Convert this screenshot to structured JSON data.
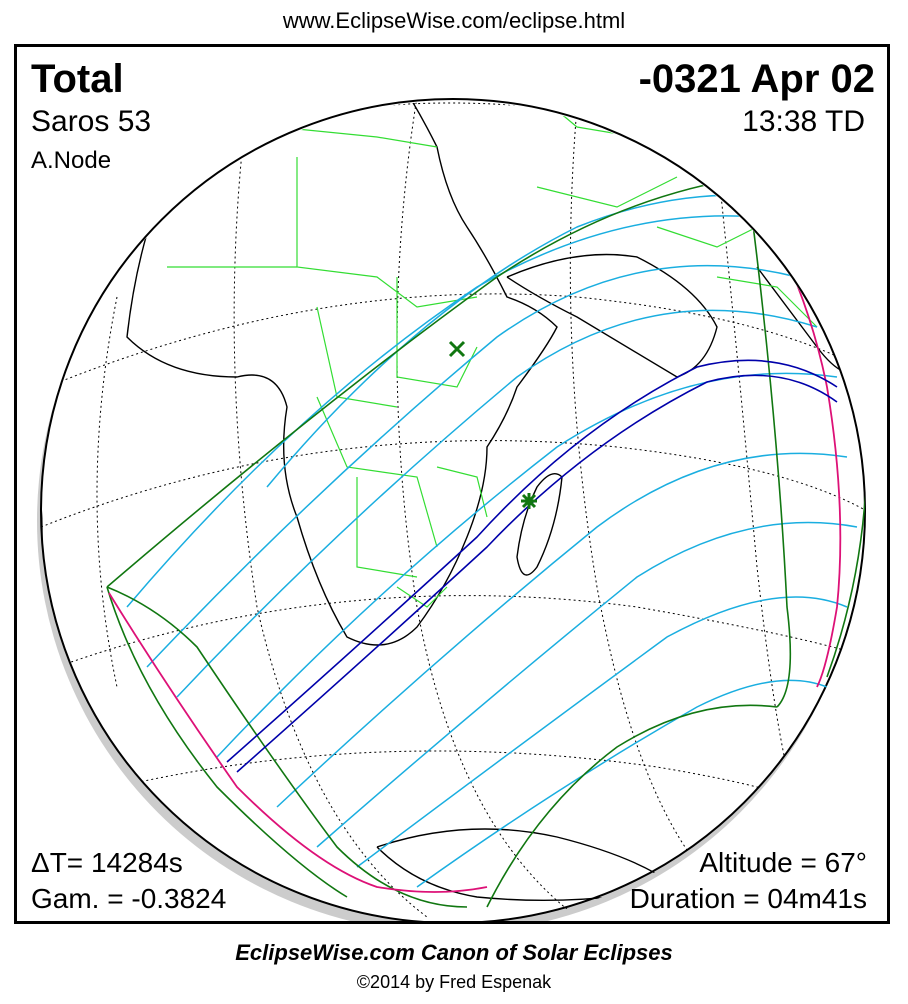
{
  "header": {
    "url": "www.EclipseWise.com/eclipse.html"
  },
  "eclipse": {
    "type": "Total",
    "date": "-0321 Apr 02",
    "saros": "Saros  53",
    "time": "13:38 TD",
    "node": "A.Node",
    "delta_t": "ΔT=  14284s",
    "gamma": "Gam. = -0.3824",
    "altitude": "Altitude = 67°",
    "duration": "Duration = 04m41s"
  },
  "colors": {
    "continents": "#000000",
    "borders": "#33dd33",
    "penumbral_limits": "#117711",
    "umbral_path": "#0000aa",
    "time_lines": "#1aaee0",
    "rise_set": "#dd1177",
    "graticule": "#000000"
  },
  "markers": {
    "greatest_eclipse_icon": "star-icon",
    "greatest_duration_icon": "cross-icon"
  },
  "footer": {
    "title": "EclipseWise.com Canon of Solar Eclipses",
    "copyright": "©2014 by Fred Espenak"
  }
}
